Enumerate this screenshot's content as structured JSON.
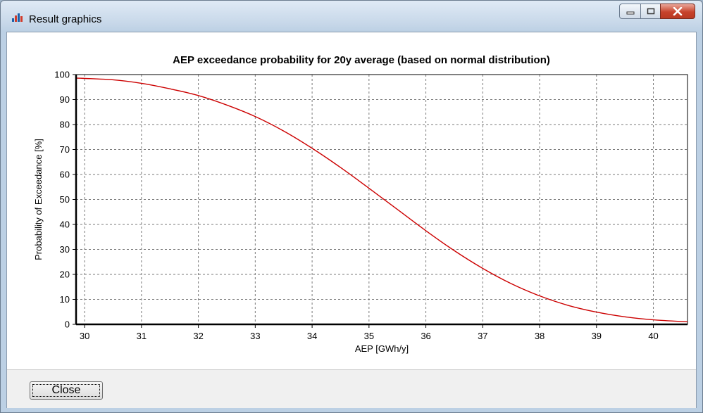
{
  "window": {
    "title": "Result graphics",
    "icon": "bar-chart-app-icon",
    "controls": [
      "minimize-icon",
      "maximize-icon",
      "close-icon"
    ]
  },
  "footer": {
    "close_label": "Close"
  },
  "chart_data": {
    "type": "line",
    "title": "AEP exceedance probability for 20y average (based on normal distribution)",
    "xlabel": "AEP [GWh/y]",
    "ylabel": "Probability of Exceedance [%]",
    "xlim": [
      29.85,
      40.6
    ],
    "ylim": [
      0,
      100
    ],
    "xticks": [
      30,
      31,
      32,
      33,
      34,
      35,
      36,
      37,
      38,
      39,
      40
    ],
    "yticks": [
      0,
      10,
      20,
      30,
      40,
      50,
      60,
      70,
      80,
      90,
      100
    ],
    "grid": true,
    "line_color": "#cc0000",
    "series": [
      {
        "x": [
          29.85,
          30.5,
          31,
          31.5,
          32,
          32.5,
          33,
          33.5,
          34,
          34.5,
          35,
          35.5,
          36,
          36.5,
          37,
          37.5,
          38,
          38.5,
          39,
          39.5,
          40,
          40.6
        ],
        "y": [
          98.6,
          97.9,
          96.5,
          94.3,
          91.6,
          87.8,
          83.2,
          77.4,
          70.5,
          62.8,
          54.5,
          46.0,
          37.5,
          29.5,
          22.4,
          16.3,
          11.4,
          7.6,
          4.9,
          3.0,
          1.8,
          1.0
        ]
      }
    ]
  }
}
